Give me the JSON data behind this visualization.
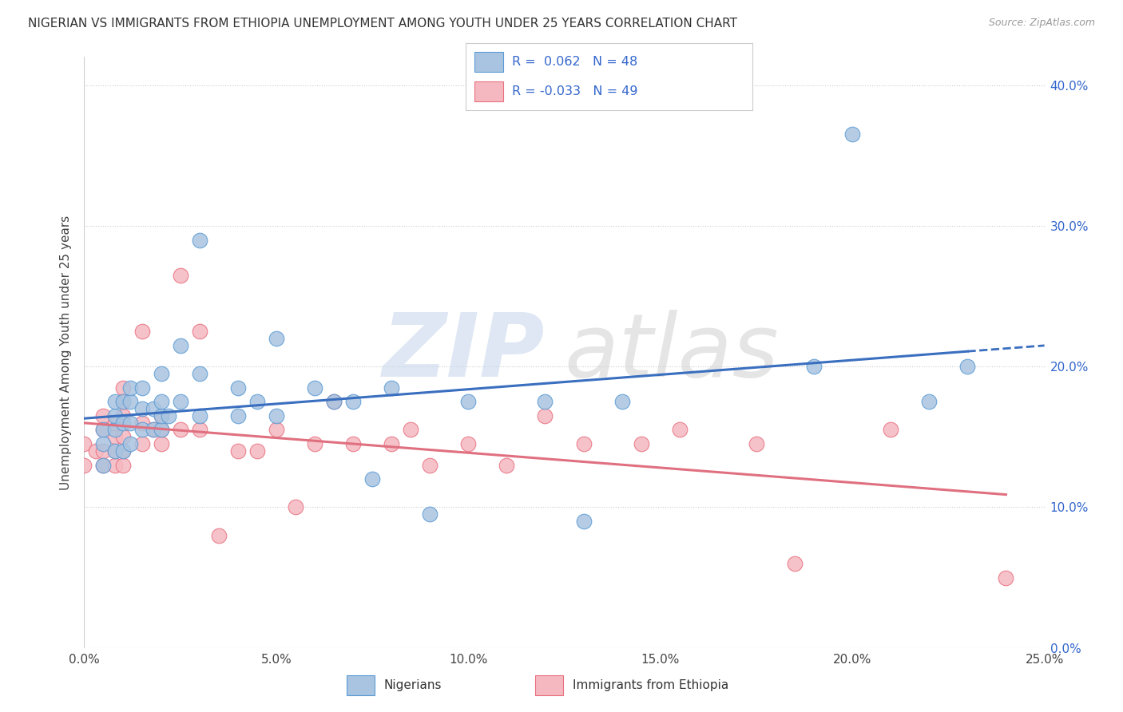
{
  "title": "NIGERIAN VS IMMIGRANTS FROM ETHIOPIA UNEMPLOYMENT AMONG YOUTH UNDER 25 YEARS CORRELATION CHART",
  "source": "Source: ZipAtlas.com",
  "ylabel": "Unemployment Among Youth under 25 years",
  "xlim": [
    0.0,
    0.25
  ],
  "ylim": [
    0.0,
    0.42
  ],
  "xticks": [
    0.0,
    0.05,
    0.1,
    0.15,
    0.2,
    0.25
  ],
  "yticks": [
    0.0,
    0.1,
    0.2,
    0.3,
    0.4
  ],
  "nigerians_color": "#a8c4e0",
  "nigerians_edge_color": "#5b9bd5",
  "nigerians_line_color": "#3a6fbf",
  "ethiopia_color": "#f5b8c0",
  "ethiopia_edge_color": "#e87080",
  "ethiopia_line_color": "#e07080",
  "background_color": "#ffffff",
  "grid_color": "#cccccc",
  "nigerians_x": [
    0.005,
    0.005,
    0.005,
    0.008,
    0.008,
    0.008,
    0.008,
    0.01,
    0.01,
    0.01,
    0.012,
    0.012,
    0.012,
    0.012,
    0.015,
    0.015,
    0.015,
    0.018,
    0.018,
    0.02,
    0.02,
    0.02,
    0.02,
    0.022,
    0.025,
    0.025,
    0.03,
    0.03,
    0.03,
    0.04,
    0.04,
    0.045,
    0.05,
    0.05,
    0.06,
    0.065,
    0.07,
    0.075,
    0.08,
    0.09,
    0.1,
    0.12,
    0.13,
    0.14,
    0.19,
    0.2,
    0.22,
    0.23
  ],
  "nigerians_y": [
    0.13,
    0.145,
    0.155,
    0.14,
    0.155,
    0.165,
    0.175,
    0.14,
    0.16,
    0.175,
    0.145,
    0.16,
    0.175,
    0.185,
    0.155,
    0.17,
    0.185,
    0.155,
    0.17,
    0.155,
    0.165,
    0.175,
    0.195,
    0.165,
    0.175,
    0.215,
    0.165,
    0.195,
    0.29,
    0.165,
    0.185,
    0.175,
    0.165,
    0.22,
    0.185,
    0.175,
    0.175,
    0.12,
    0.185,
    0.095,
    0.175,
    0.175,
    0.09,
    0.175,
    0.2,
    0.365,
    0.175,
    0.2
  ],
  "ethiopia_x": [
    0.0,
    0.0,
    0.003,
    0.005,
    0.005,
    0.005,
    0.005,
    0.008,
    0.008,
    0.008,
    0.008,
    0.01,
    0.01,
    0.01,
    0.01,
    0.01,
    0.01,
    0.015,
    0.015,
    0.015,
    0.018,
    0.02,
    0.02,
    0.02,
    0.025,
    0.025,
    0.03,
    0.03,
    0.035,
    0.04,
    0.045,
    0.05,
    0.055,
    0.06,
    0.065,
    0.07,
    0.08,
    0.085,
    0.09,
    0.1,
    0.11,
    0.12,
    0.13,
    0.145,
    0.155,
    0.175,
    0.185,
    0.21,
    0.24
  ],
  "ethiopia_y": [
    0.13,
    0.145,
    0.14,
    0.13,
    0.14,
    0.155,
    0.165,
    0.13,
    0.14,
    0.15,
    0.16,
    0.13,
    0.14,
    0.15,
    0.165,
    0.175,
    0.185,
    0.145,
    0.16,
    0.225,
    0.155,
    0.145,
    0.155,
    0.165,
    0.155,
    0.265,
    0.155,
    0.225,
    0.08,
    0.14,
    0.14,
    0.155,
    0.1,
    0.145,
    0.175,
    0.145,
    0.145,
    0.155,
    0.13,
    0.145,
    0.13,
    0.165,
    0.145,
    0.145,
    0.155,
    0.145,
    0.06,
    0.155,
    0.05
  ]
}
